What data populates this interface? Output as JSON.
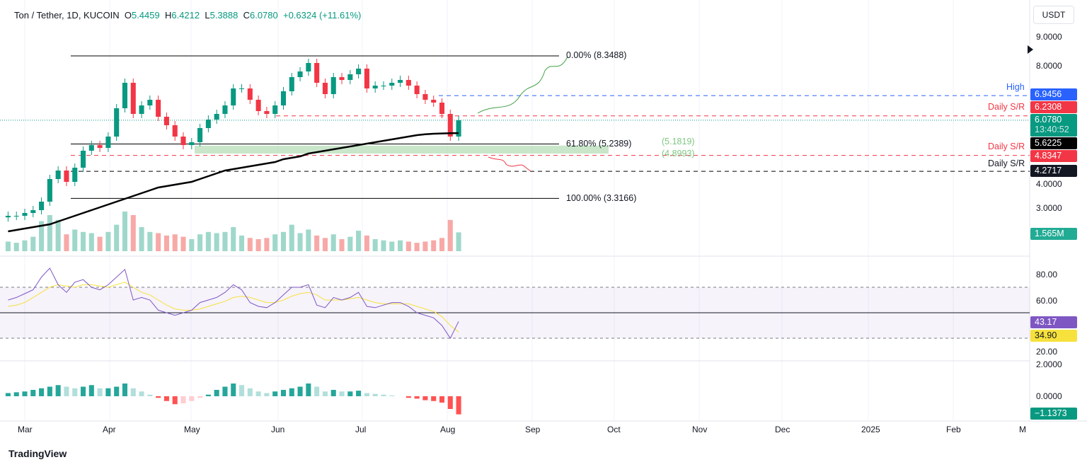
{
  "header": {
    "symbol": "Ton / Tether, 1D, KUCOIN",
    "open_label": "O",
    "open": "5.4459",
    "high_label": "H",
    "high": "6.4212",
    "low_label": "L",
    "low": "5.3888",
    "close_label": "C",
    "close": "6.0780",
    "change": "+0.6324 (+11.61%)"
  },
  "currency_button": "USDT",
  "price_axis": [
    "9.0000",
    "8.0000",
    "4.0000",
    "3.0000"
  ],
  "rsi_axis": [
    "80.00",
    "60.00",
    "20.00"
  ],
  "macd_axis": [
    "2.0000",
    "0.0000"
  ],
  "time_axis": [
    "Mar",
    "Apr",
    "May",
    "Jun",
    "Jul",
    "Aug",
    "Sep",
    "Oct",
    "Nov",
    "Dec",
    "2025",
    "Feb",
    "M"
  ],
  "tags": {
    "high": "6.9456",
    "sr1": "6.2308",
    "last": "6.0780",
    "countdown": "13:40:52",
    "ma": "5.6225",
    "sr2": "4.8347",
    "sr3": "4.2717",
    "volume": "1.565M",
    "rsi": "43.17",
    "rsi_ma": "34.90",
    "macd": "−1.1373"
  },
  "labels": {
    "high": "High",
    "sr1": "Daily S/R",
    "sr2": "Daily S/R",
    "sr3": "Daily S/R",
    "fib0": "0.00% (8.3488)",
    "fib618": "61.80% (5.2389)",
    "zone_top": "(5.1819)",
    "zone_bottom": "(4.8993)",
    "fib100": "100.00% (3.3166)"
  },
  "logo": "TradingView",
  "colors": {
    "up": "#089981",
    "down": "#f23645",
    "high": "#2962ff",
    "rsi": "#7e57c2",
    "rsi_ma": "#f7e13c"
  },
  "chart_data": {
    "type": "candlestick",
    "scale": "linear",
    "start_date": "2024-02-24",
    "step_days": 3,
    "closes": [
      2.7,
      2.7,
      2.8,
      2.9,
      3.2,
      4.0,
      4.3,
      3.9,
      4.4,
      5.0,
      5.2,
      5.1,
      5.5,
      6.5,
      7.4,
      6.3,
      6.6,
      6.8,
      6.2,
      5.9,
      5.5,
      5.2,
      5.3,
      5.8,
      6.1,
      6.3,
      6.6,
      7.2,
      7.2,
      6.8,
      6.4,
      6.3,
      6.6,
      7.1,
      7.6,
      7.8,
      8.1,
      7.4,
      7.0,
      7.6,
      7.5,
      7.7,
      7.9,
      7.2,
      7.3,
      7.3,
      7.4,
      7.5,
      7.3,
      7.0,
      6.8,
      6.7,
      6.3,
      5.5,
      6.078
    ],
    "volume_m": [
      0.8,
      0.7,
      0.9,
      1.2,
      2.5,
      3.0,
      2.6,
      1.4,
      1.8,
      1.6,
      1.5,
      1.2,
      1.6,
      2.2,
      3.3,
      3.0,
      2.0,
      1.6,
      1.5,
      1.3,
      1.4,
      1.2,
      1.0,
      1.4,
      1.6,
      1.5,
      1.6,
      2.0,
      1.3,
      1.1,
      1.0,
      1.1,
      1.4,
      1.6,
      2.2,
      1.5,
      1.8,
      1.3,
      1.1,
      1.4,
      1.0,
      1.2,
      1.7,
      1.3,
      1.0,
      0.9,
      0.8,
      0.9,
      0.8,
      0.7,
      0.8,
      0.9,
      1.1,
      2.6,
      1.565
    ],
    "ma200": [
      2.15,
      2.2,
      2.25,
      2.3,
      2.35,
      2.4,
      2.5,
      2.6,
      2.7,
      2.8,
      2.9,
      3.0,
      3.1,
      3.2,
      3.3,
      3.4,
      3.5,
      3.6,
      3.7,
      3.75,
      3.8,
      3.85,
      3.9,
      4.0,
      4.1,
      4.2,
      4.3,
      4.35,
      4.4,
      4.45,
      4.5,
      4.55,
      4.6,
      4.7,
      4.75,
      4.8,
      4.9,
      4.95,
      5.0,
      5.05,
      5.1,
      5.15,
      5.2,
      5.25,
      5.3,
      5.35,
      5.4,
      5.45,
      5.5,
      5.55,
      5.58,
      5.6,
      5.61,
      5.62,
      5.6225
    ],
    "rsi": [
      60,
      62,
      65,
      68,
      78,
      85,
      72,
      66,
      74,
      76,
      70,
      68,
      72,
      78,
      84,
      60,
      62,
      60,
      52,
      50,
      48,
      50,
      52,
      58,
      60,
      62,
      66,
      72,
      68,
      58,
      55,
      54,
      58,
      64,
      70,
      70,
      72,
      56,
      54,
      62,
      60,
      62,
      66,
      55,
      54,
      56,
      58,
      58,
      55,
      50,
      48,
      46,
      40,
      30,
      43.17
    ],
    "rsi_ma": [
      55,
      56,
      58,
      62,
      66,
      70,
      72,
      71,
      70,
      72,
      72,
      71,
      70,
      72,
      74,
      70,
      66,
      64,
      60,
      56,
      53,
      52,
      52,
      53,
      55,
      57,
      59,
      62,
      63,
      62,
      60,
      58,
      58,
      60,
      63,
      65,
      66,
      64,
      60,
      60,
      60,
      61,
      62,
      60,
      58,
      57,
      57,
      57,
      57,
      55,
      53,
      51,
      47,
      40,
      34.9
    ],
    "rsi_levels": [
      70,
      50,
      30
    ],
    "macd_hist": [
      0.2,
      0.25,
      0.3,
      0.4,
      0.5,
      0.6,
      0.7,
      0.6,
      0.5,
      0.6,
      0.7,
      0.5,
      0.5,
      0.6,
      0.8,
      0.5,
      0.3,
      0.1,
      -0.1,
      -0.3,
      -0.5,
      -0.45,
      -0.3,
      -0.1,
      0.1,
      0.4,
      0.6,
      0.8,
      0.7,
      0.5,
      0.3,
      0.2,
      0.3,
      0.4,
      0.5,
      0.6,
      0.8,
      0.6,
      0.3,
      0.4,
      0.3,
      0.3,
      0.35,
      0.2,
      0.15,
      0.1,
      0.05,
      0.0,
      -0.1,
      -0.15,
      -0.25,
      -0.3,
      -0.4,
      -0.8,
      -1.1373
    ]
  }
}
